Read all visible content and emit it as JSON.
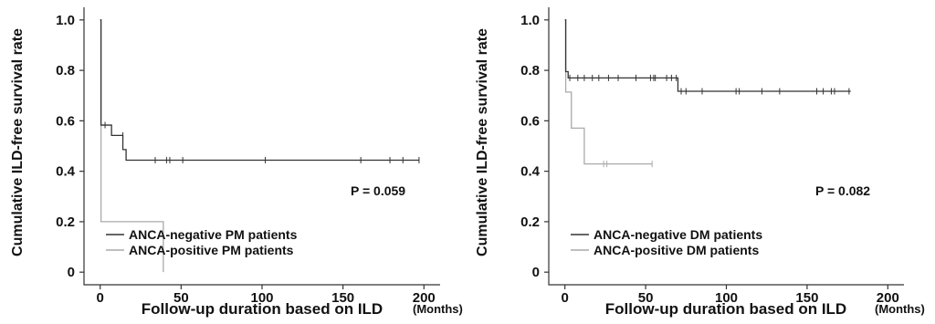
{
  "chart_data": [
    {
      "type": "line",
      "title": "",
      "ylabel": "Cumulative ILD-free  survival rate",
      "xlabel": "Follow-up duration based on ILD",
      "x_unit": "(Months)",
      "xlim": [
        -10,
        210
      ],
      "ylim": [
        -0.05,
        1.05
      ],
      "xticks": [
        0,
        50,
        100,
        150,
        200
      ],
      "yticks": [
        0,
        0.2,
        0.4,
        0.6,
        0.8,
        1.0
      ],
      "yticklabels": [
        "0",
        "0.2",
        "0.4",
        "0.6",
        "0.8",
        "1.0"
      ],
      "annotation": "P = 0.059",
      "legend_position": "bottom-left",
      "series": [
        {
          "name": "ANCA-negative PM patients",
          "color": "#333333",
          "step_x": [
            0,
            0.5,
            7,
            14,
            16,
            197
          ],
          "step_y": [
            1.0,
            0.583,
            0.542,
            0.486,
            0.444,
            0.444
          ],
          "censored_x": [
            3,
            14,
            34,
            41,
            43,
            51,
            102,
            161,
            179,
            187,
            197
          ],
          "censored_y": [
            0.583,
            0.542,
            0.444,
            0.444,
            0.444,
            0.444,
            0.444,
            0.444,
            0.444,
            0.444,
            0.444
          ]
        },
        {
          "name": "ANCA-positive PM patients",
          "color": "#aaaaaa",
          "step_x": [
            0,
            0.5,
            39
          ],
          "step_y": [
            1.0,
            0.2,
            0.0
          ],
          "censored_x": [],
          "censored_y": []
        }
      ]
    },
    {
      "type": "line",
      "title": "",
      "ylabel": "Cumulative ILD-free  survival rate",
      "xlabel": "Follow-up duration based on ILD",
      "x_unit": "(Months)",
      "xlim": [
        -10,
        210
      ],
      "ylim": [
        -0.05,
        1.05
      ],
      "xticks": [
        0,
        50,
        100,
        150,
        200
      ],
      "yticks": [
        0,
        0.2,
        0.4,
        0.6,
        0.8,
        1.0
      ],
      "yticklabels": [
        "0",
        "0.2",
        "0.4",
        "0.6",
        "0.8",
        "1.0"
      ],
      "annotation": "P = 0.082",
      "legend_position": "bottom-left",
      "series": [
        {
          "name": "ANCA-negative DM patients",
          "color": "#333333",
          "step_x": [
            0,
            0.5,
            2,
            70,
            177
          ],
          "step_y": [
            1.0,
            0.795,
            0.77,
            0.717,
            0.717
          ],
          "censored_x": [
            3,
            8,
            12,
            17,
            21,
            27,
            33,
            44,
            53,
            55,
            56,
            63,
            66,
            69,
            72,
            75,
            85,
            106,
            108,
            122,
            133,
            156,
            160,
            165,
            167,
            176
          ],
          "censored_y": [
            0.77,
            0.77,
            0.77,
            0.77,
            0.77,
            0.77,
            0.77,
            0.77,
            0.77,
            0.77,
            0.77,
            0.77,
            0.77,
            0.77,
            0.717,
            0.717,
            0.717,
            0.717,
            0.717,
            0.717,
            0.717,
            0.717,
            0.717,
            0.717,
            0.717,
            0.717
          ]
        },
        {
          "name": "ANCA-positive DM patients",
          "color": "#aaaaaa",
          "step_x": [
            0,
            0.5,
            4,
            12,
            54
          ],
          "step_y": [
            1.0,
            0.714,
            0.571,
            0.429,
            0.429
          ],
          "censored_x": [
            24,
            26,
            54
          ],
          "censored_y": [
            0.429,
            0.429,
            0.429
          ]
        }
      ]
    }
  ]
}
